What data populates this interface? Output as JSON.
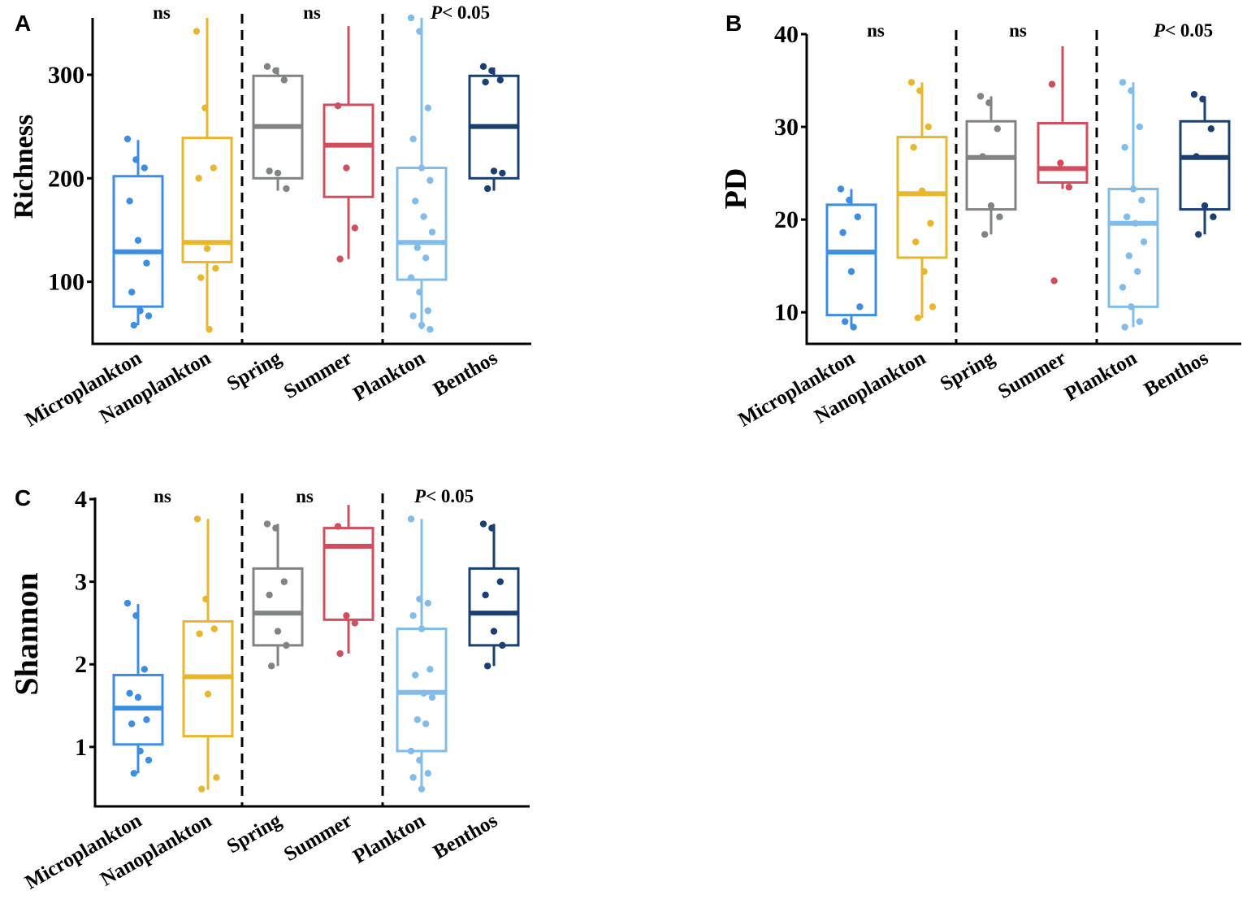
{
  "chart_data": [
    {
      "panel": "A",
      "type": "box",
      "ylabel": "Richness",
      "ylim": [
        40,
        355
      ],
      "yticks": [
        100,
        200,
        300
      ],
      "categories": [
        "Microplankton",
        "Nanoplankton",
        "Spring",
        "Summer",
        "Plankton",
        "Benthos"
      ],
      "colors": [
        "#3d8ee3",
        "#e8b72e",
        "#808483",
        "#d24d5e",
        "#82bcea",
        "#1c3f72"
      ],
      "group_annotations": [
        "ns",
        "ns",
        "< 0.05"
      ],
      "p_symbol": "P",
      "boxes": [
        {
          "q1": 76,
          "median": 129,
          "q3": 202,
          "whisker_low": 58,
          "whisker_high": 237
        },
        {
          "q1": 119,
          "median": 138,
          "q3": 239,
          "whisker_low": 55,
          "whisker_high": 355
        },
        {
          "q1": 200,
          "median": 250,
          "q3": 299,
          "whisker_low": 188,
          "whisker_high": 307
        },
        {
          "q1": 182,
          "median": 232,
          "q3": 271,
          "whisker_low": 122,
          "whisker_high": 347
        },
        {
          "q1": 102,
          "median": 138,
          "q3": 210,
          "whisker_low": 54,
          "whisker_high": 355
        },
        {
          "q1": 200,
          "median": 250,
          "q3": 299,
          "whisker_low": 188,
          "whisker_high": 307
        }
      ],
      "points": [
        [
          238,
          218,
          210,
          178,
          140,
          118,
          90,
          72,
          67,
          58
        ],
        [
          342,
          268,
          210,
          200,
          132,
          113,
          104,
          54
        ],
        [
          308,
          304,
          295,
          207,
          205,
          190
        ],
        [
          270,
          210,
          152,
          122
        ],
        [
          355,
          342,
          268,
          238,
          210,
          198,
          178,
          163,
          148,
          133,
          123,
          104,
          90,
          72,
          67,
          58,
          54
        ],
        [
          308,
          304,
          295,
          293,
          207,
          205,
          190
        ]
      ]
    },
    {
      "panel": "B",
      "type": "box",
      "ylabel": "PD",
      "ylim": [
        6.6,
        40
      ],
      "yticks": [
        10,
        20,
        30,
        40
      ],
      "categories": [
        "Microplankton",
        "Nanoplankton",
        "Spring",
        "Summer",
        "Plankton",
        "Benthos"
      ],
      "colors": [
        "#3d8ee3",
        "#e8b72e",
        "#808483",
        "#d24d5e",
        "#82bcea",
        "#1c3f72"
      ],
      "group_annotations": [
        "ns",
        "ns",
        "< 0.05"
      ],
      "p_symbol": "P",
      "boxes": [
        {
          "q1": 9.7,
          "median": 16.5,
          "q3": 21.6,
          "whisker_low": 8.4,
          "whisker_high": 23.3
        },
        {
          "q1": 15.9,
          "median": 22.8,
          "q3": 28.9,
          "whisker_low": 9.4,
          "whisker_high": 34.8
        },
        {
          "q1": 21.1,
          "median": 26.7,
          "q3": 30.6,
          "whisker_low": 18.4,
          "whisker_high": 33.3
        },
        {
          "q1": 24.0,
          "median": 25.5,
          "q3": 30.4,
          "whisker_low": 23.3,
          "whisker_high": 38.7
        },
        {
          "q1": 10.6,
          "median": 19.6,
          "q3": 23.3,
          "whisker_low": 8.4,
          "whisker_high": 34.8
        },
        {
          "q1": 21.1,
          "median": 26.7,
          "q3": 30.6,
          "whisker_low": 18.4,
          "whisker_high": 33.3
        }
      ],
      "points": [
        [
          23.3,
          22.1,
          20.3,
          18.6,
          14.4,
          10.6,
          9.0,
          8.4
        ],
        [
          34.8,
          33.9,
          30.0,
          27.8,
          23.1,
          19.6,
          17.6,
          14.4,
          10.6,
          9.4
        ],
        [
          33.3,
          32.6,
          29.8,
          26.8,
          21.5,
          20.3,
          18.4
        ],
        [
          34.6,
          26.1,
          23.5,
          13.4
        ],
        [
          34.8,
          33.9,
          30.0,
          27.8,
          23.3,
          22.1,
          20.3,
          19.6,
          17.6,
          16.1,
          14.4,
          12.7,
          10.6,
          9.0,
          8.4
        ],
        [
          33.5,
          33.0,
          29.8,
          26.8,
          21.5,
          20.3,
          18.4
        ]
      ]
    },
    {
      "panel": "C",
      "type": "box",
      "ylabel": "Shannon",
      "ylim": [
        0.28,
        4.02
      ],
      "yticks": [
        1,
        2,
        3,
        4
      ],
      "categories": [
        "Microplankton",
        "Nanoplankton",
        "Spring",
        "Summer",
        "Plankton",
        "Benthos"
      ],
      "colors": [
        "#3d8ee3",
        "#e8b72e",
        "#808483",
        "#d24d5e",
        "#82bcea",
        "#1c3f72"
      ],
      "group_annotations": [
        "ns",
        "ns",
        "< 0.05"
      ],
      "p_symbol": "P",
      "boxes": [
        {
          "q1": 1.03,
          "median": 1.47,
          "q3": 1.87,
          "whisker_low": 0.68,
          "whisker_high": 2.73
        },
        {
          "q1": 1.13,
          "median": 1.85,
          "q3": 2.52,
          "whisker_low": 0.48,
          "whisker_high": 3.76
        },
        {
          "q1": 2.23,
          "median": 2.62,
          "q3": 3.16,
          "whisker_low": 1.98,
          "whisker_high": 3.7
        },
        {
          "q1": 2.54,
          "median": 3.43,
          "q3": 3.65,
          "whisker_low": 2.13,
          "whisker_high": 3.93
        },
        {
          "q1": 0.95,
          "median": 1.66,
          "q3": 2.43,
          "whisker_low": 0.48,
          "whisker_high": 3.76
        },
        {
          "q1": 2.23,
          "median": 2.62,
          "q3": 3.16,
          "whisker_low": 1.98,
          "whisker_high": 3.7
        }
      ],
      "points": [
        [
          2.74,
          2.59,
          1.94,
          1.65,
          1.6,
          1.33,
          1.28,
          0.95,
          0.84,
          0.68
        ],
        [
          3.76,
          2.79,
          2.43,
          2.37,
          1.64,
          0.63,
          0.49
        ],
        [
          3.7,
          3.65,
          3.0,
          2.84,
          2.4,
          2.23,
          1.98
        ],
        [
          3.67,
          2.59,
          2.5,
          2.13
        ],
        [
          3.76,
          2.79,
          2.74,
          2.59,
          2.43,
          1.94,
          1.87,
          1.65,
          1.6,
          1.33,
          1.28,
          0.95,
          0.84,
          0.68,
          0.63,
          0.49
        ],
        [
          3.7,
          3.65,
          3.0,
          2.84,
          2.4,
          2.23,
          1.98
        ]
      ]
    }
  ]
}
